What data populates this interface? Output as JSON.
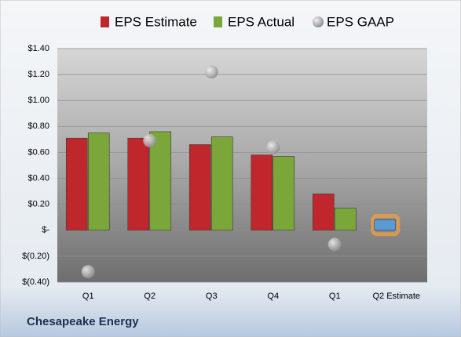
{
  "chart_data": {
    "type": "bar",
    "footer": "Chesapeake Energy",
    "categories": [
      "Q1",
      "Q2",
      "Q3",
      "Q4",
      "Q1",
      "Q2 Estimate"
    ],
    "series": [
      {
        "name": "EPS Estimate",
        "color": "#c0272d",
        "highlight_color": "#5b9bd5",
        "values": [
          0.71,
          0.71,
          0.66,
          0.58,
          0.28,
          0.08
        ]
      },
      {
        "name": "EPS Actual",
        "color": "#7aa63a",
        "values": [
          0.75,
          0.76,
          0.72,
          0.57,
          0.17,
          null
        ]
      },
      {
        "name": "EPS GAAP",
        "color": "#a6a6a6",
        "values": [
          -0.32,
          0.69,
          1.22,
          0.64,
          -0.11,
          null
        ]
      }
    ],
    "ylim": [
      -0.4,
      1.4
    ],
    "yticks": [
      {
        "value": -0.4,
        "label": "$(0.40)"
      },
      {
        "value": -0.2,
        "label": "$(0.20)"
      },
      {
        "value": 0,
        "label": "$-"
      },
      {
        "value": 0.2,
        "label": "$0.20"
      },
      {
        "value": 0.4,
        "label": "$0.40"
      },
      {
        "value": 0.6,
        "label": "$0.60"
      },
      {
        "value": 0.8,
        "label": "$0.80"
      },
      {
        "value": 1.0,
        "label": "$1.00"
      },
      {
        "value": 1.2,
        "label": "$1.20"
      },
      {
        "value": 1.4,
        "label": "$1.40"
      }
    ],
    "grid": true
  }
}
